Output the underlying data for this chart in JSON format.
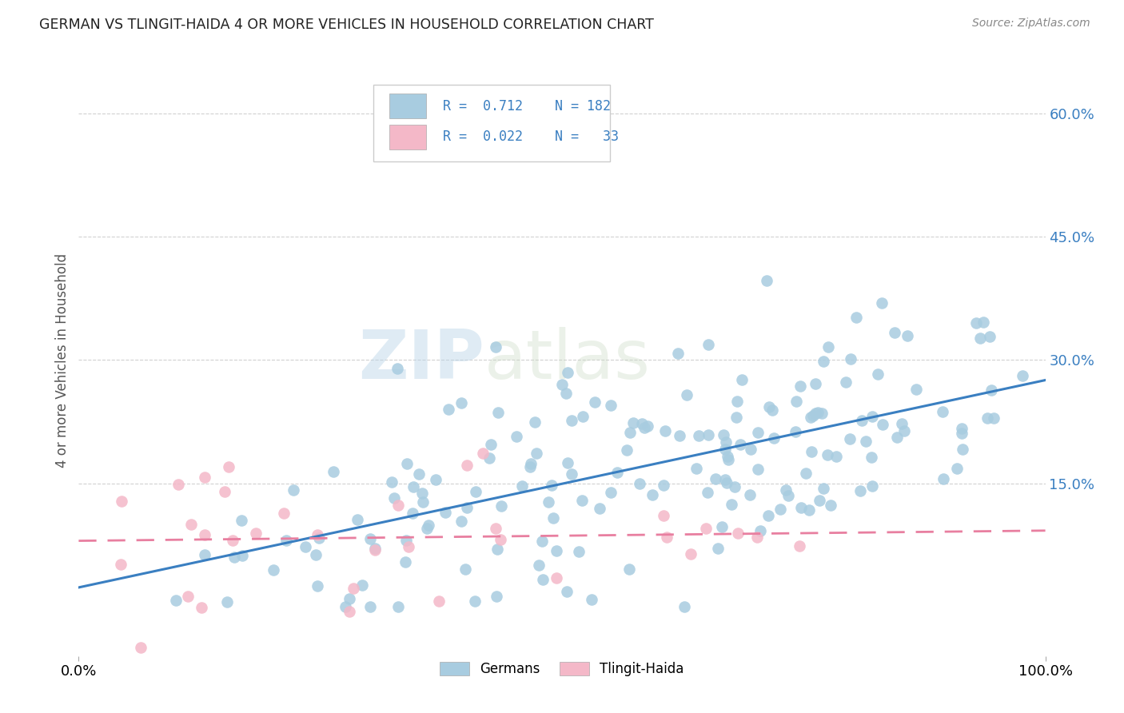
{
  "title": "GERMAN VS TLINGIT-HAIDA 4 OR MORE VEHICLES IN HOUSEHOLD CORRELATION CHART",
  "source": "Source: ZipAtlas.com",
  "ylabel": "4 or more Vehicles in Household",
  "right_ytick_vals": [
    0.15,
    0.3,
    0.45,
    0.6
  ],
  "right_ytick_labels": [
    "15.0%",
    "30.0%",
    "45.0%",
    "60.0%"
  ],
  "xlim": [
    0.0,
    1.0
  ],
  "ylim": [
    -0.06,
    0.66
  ],
  "german_R": 0.712,
  "german_N": 182,
  "tlingit_R": 0.022,
  "tlingit_N": 33,
  "blue_scatter_color": "#a8cce0",
  "pink_scatter_color": "#f4b8c8",
  "blue_line_color": "#3a7fc1",
  "pink_line_color": "#e87fa0",
  "background_color": "#ffffff",
  "grid_color": "#cccccc",
  "legend_label_german": "Germans",
  "legend_label_tlingit": "Tlingit-Haida",
  "german_slope": 0.27,
  "german_intercept": 0.015,
  "tlingit_slope": 0.005,
  "tlingit_intercept": 0.095
}
